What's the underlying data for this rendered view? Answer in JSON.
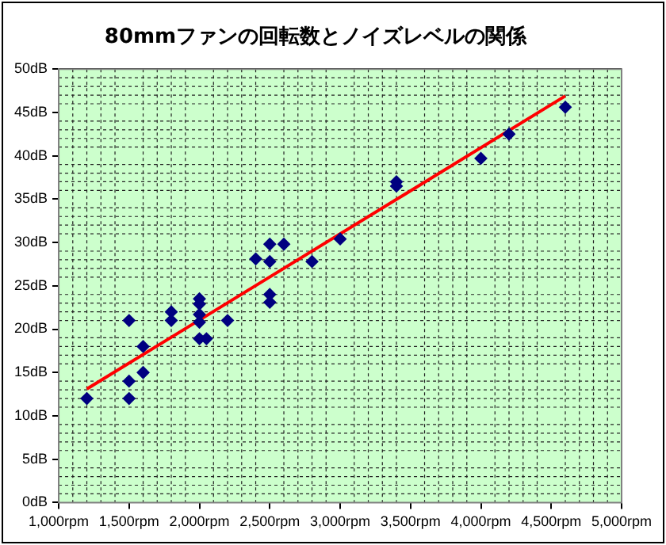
{
  "chart_data": {
    "type": "scatter",
    "title": "80mmファンの回転数とノイズレベルの関係",
    "grid": true,
    "legend": false,
    "xlim": [
      1000,
      5000
    ],
    "xticks": [
      {
        "value": 1000,
        "label": "1,000rpm"
      },
      {
        "value": 1500,
        "label": "1,500rpm"
      },
      {
        "value": 2000,
        "label": "2,000rpm"
      },
      {
        "value": 2500,
        "label": "2,500rpm"
      },
      {
        "value": 3000,
        "label": "3,000rpm"
      },
      {
        "value": 3500,
        "label": "3,500rpm"
      },
      {
        "value": 4000,
        "label": "4,000rpm"
      },
      {
        "value": 4500,
        "label": "4,500rpm"
      },
      {
        "value": 5000,
        "label": "5,000rpm"
      }
    ],
    "ylim": [
      0,
      50
    ],
    "yticks": [
      {
        "value": 0,
        "label": "0dB"
      },
      {
        "value": 5,
        "label": "5dB"
      },
      {
        "value": 10,
        "label": "10dB"
      },
      {
        "value": 15,
        "label": "15dB"
      },
      {
        "value": 20,
        "label": "20dB"
      },
      {
        "value": 25,
        "label": "25dB"
      },
      {
        "value": 30,
        "label": "30dB"
      },
      {
        "value": 35,
        "label": "35dB"
      },
      {
        "value": 40,
        "label": "40dB"
      },
      {
        "value": 45,
        "label": "45dB"
      },
      {
        "value": 50,
        "label": "50dB"
      }
    ],
    "series": [
      {
        "type": "scatter",
        "color": "#000080",
        "marker": "diamond",
        "x": [
          1200,
          1500,
          1500,
          1500,
          1600,
          1600,
          1800,
          1800,
          2000,
          2000,
          2000,
          2000,
          2000,
          2050,
          2200,
          2400,
          2500,
          2600,
          2500,
          2500,
          2500,
          2800,
          3000,
          3400,
          3400,
          4000,
          4200,
          4600
        ],
        "values": [
          12,
          21,
          14,
          12,
          18,
          15,
          22,
          21,
          23.5,
          22.9,
          21.7,
          20.8,
          18.9,
          18.9,
          21,
          28.1,
          29.8,
          29.8,
          27.8,
          24,
          23.1,
          27.8,
          30.4,
          36.5,
          37,
          39.7,
          42.5,
          45.6
        ]
      },
      {
        "type": "line",
        "color": "#ff0000",
        "marker": "none",
        "x": [
          1200,
          4600
        ],
        "values": [
          13.1,
          46.9
        ]
      }
    ]
  }
}
